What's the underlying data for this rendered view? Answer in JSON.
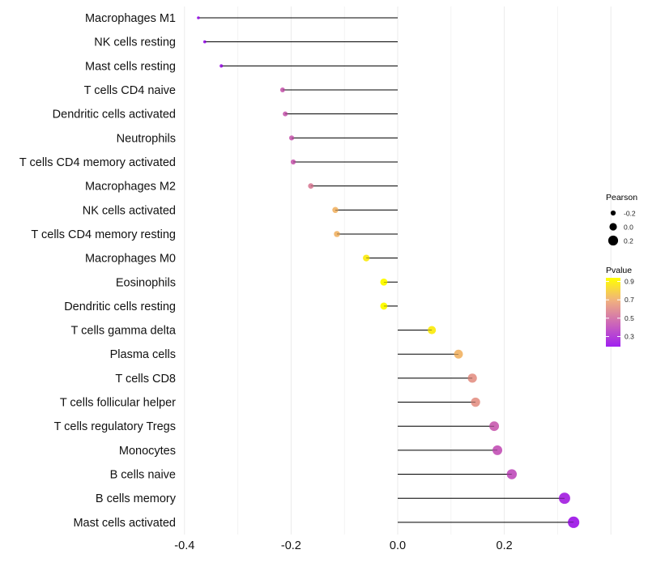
{
  "chart_data": {
    "type": "lollipop",
    "title": "",
    "xlabel": "",
    "ylabel": "",
    "xlim": [
      -0.4,
      0.4
    ],
    "xticks": [
      -0.4,
      -0.2,
      0.0,
      0.2
    ],
    "xtick_labels": [
      "-0.4",
      "-0.2",
      "0.0",
      "0.2"
    ],
    "grid": true,
    "categories": [
      "Macrophages M1",
      "NK cells resting",
      "Mast cells resting",
      "T cells CD4 naive",
      "Dendritic cells activated",
      "Neutrophils",
      "T cells CD4 memory activated",
      "Macrophages M2",
      "NK cells activated",
      "T cells CD4 memory resting",
      "Macrophages M0",
      "Eosinophils",
      "Dendritic cells resting",
      "T cells gamma delta",
      "Plasma cells",
      "T cells CD8",
      "T cells follicular helper",
      "T cells regulatory  Tregs ",
      "Monocytes",
      "B cells naive",
      "B cells memory",
      "Mast cells activated"
    ],
    "values": [
      -0.374,
      -0.362,
      -0.331,
      -0.216,
      -0.211,
      -0.199,
      -0.196,
      -0.163,
      -0.117,
      -0.114,
      -0.059,
      -0.026,
      -0.026,
      0.064,
      0.114,
      0.14,
      0.146,
      0.181,
      0.187,
      0.214,
      0.313,
      0.33
    ],
    "pvalues": [
      0.2,
      0.2,
      0.22,
      0.45,
      0.45,
      0.45,
      0.45,
      0.55,
      0.72,
      0.72,
      0.88,
      0.93,
      0.93,
      0.88,
      0.72,
      0.62,
      0.62,
      0.45,
      0.42,
      0.4,
      0.25,
      0.22
    ],
    "legend_size": {
      "title": "Pearson",
      "labels": [
        "-0.2",
        "0.0",
        "0.2"
      ],
      "values": [
        -0.2,
        0.0,
        0.2
      ]
    },
    "legend_color": {
      "title": "Pvalue",
      "labels": [
        "0.9",
        "0.7",
        "0.5",
        "0.3"
      ],
      "values": [
        0.9,
        0.7,
        0.5,
        0.3
      ],
      "range": [
        0.19,
        0.94
      ],
      "colors": [
        "#A020F0",
        "#CC66B8",
        "#F0B080",
        "#FFFF00"
      ]
    },
    "legend_position": "right"
  }
}
